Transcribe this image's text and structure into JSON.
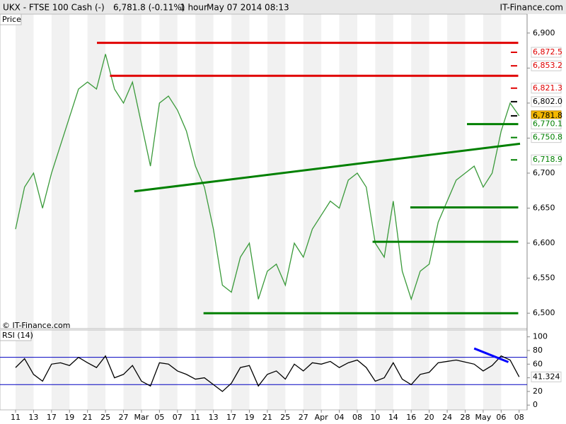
{
  "header": {
    "symbol": "UKX - FTSE 100 Cash (-)",
    "quote": "6,781.8 (-0.11%)",
    "period": "1 hour",
    "timestamp": "May 07 2014 08:13",
    "source": "IT-Finance.com"
  },
  "chart_data": [
    {
      "type": "line",
      "title": "Price",
      "watermark": "© IT-Finance.com",
      "color": "#3a9a3a",
      "categories": [
        "11",
        null,
        "13",
        null,
        "17",
        null,
        "19",
        null,
        "21",
        null,
        "25",
        null,
        "27",
        null,
        "Mar",
        null,
        "05",
        null,
        "07",
        null,
        "11",
        null,
        "13",
        null,
        "17",
        null,
        "19",
        null,
        "21",
        null,
        "25",
        null,
        "27",
        null,
        "Apr",
        null,
        "04",
        null,
        "08",
        null,
        "10",
        null,
        "14",
        null,
        "16",
        null,
        "20",
        null,
        "24",
        null,
        "28",
        null,
        "May",
        null,
        "06",
        null,
        "08"
      ],
      "values": [
        6620,
        6680,
        6700,
        6650,
        6700,
        6740,
        6780,
        6820,
        6830,
        6820,
        6870,
        6820,
        6800,
        6830,
        6770,
        6710,
        6800,
        6810,
        6790,
        6760,
        6710,
        6680,
        6620,
        6540,
        6530,
        6580,
        6600,
        6520,
        6560,
        6570,
        6540,
        6600,
        6580,
        6620,
        6640,
        6660,
        6650,
        6690,
        6700,
        6680,
        6600,
        6580,
        6660,
        6560,
        6520,
        6560,
        6570,
        6630,
        6660,
        6690,
        6700,
        6710,
        6680,
        6700,
        6760,
        6800,
        6781.8
      ],
      "ylim": [
        6478,
        6927
      ],
      "yticks": [
        {
          "value": 6500,
          "label": "6,500"
        },
        {
          "value": 6550,
          "label": "6,550"
        },
        {
          "value": 6600,
          "label": "6,600"
        },
        {
          "value": 6650,
          "label": "6,650"
        },
        {
          "value": 6700,
          "label": "6,700"
        },
        {
          "value": 6750,
          "label": "6,750"
        },
        {
          "value": 6800,
          "label": "6,800"
        },
        {
          "value": 6850,
          "label": "6,850"
        },
        {
          "value": 6900,
          "label": "6,900"
        }
      ],
      "levels": [
        {
          "value": 6872.5,
          "label": "6,872.5",
          "color": "#e00000"
        },
        {
          "value": 6853.2,
          "label": "6,853.2",
          "color": "#e00000"
        },
        {
          "value": 6821.3,
          "label": "6,821.3",
          "color": "#e00000"
        },
        {
          "value": 6802.0,
          "label": "6,802.0",
          "color": "#000000"
        },
        {
          "value": 6781.8,
          "label": "6,781.8",
          "color": "#000000",
          "highlight": "#f5b800"
        },
        {
          "value": 6770.1,
          "label": "6,770.1",
          "color": "#008000"
        },
        {
          "value": 6750.8,
          "label": "6,750.8",
          "color": "#008000"
        },
        {
          "value": 6718.9,
          "label": "6,718.9",
          "color": "#008000"
        }
      ],
      "trendlines": [
        {
          "color": "#e00000",
          "x": [
            9.05,
            55.9
          ],
          "y": [
            6886,
            6886
          ]
        },
        {
          "color": "#e00000",
          "x": [
            10.5,
            55.9
          ],
          "y": [
            6839,
            6839
          ]
        },
        {
          "color": "#008000",
          "x": [
            13.2,
            56.1
          ],
          "y": [
            6674,
            6742
          ]
        },
        {
          "color": "#008000",
          "x": [
            50.2,
            55.9
          ],
          "y": [
            6770,
            6770
          ]
        },
        {
          "color": "#008000",
          "x": [
            43.9,
            55.9
          ],
          "y": [
            6651,
            6651
          ]
        },
        {
          "color": "#008000",
          "x": [
            39.7,
            55.9
          ],
          "y": [
            6602,
            6602
          ]
        },
        {
          "color": "#008000",
          "x": [
            20.9,
            55.9
          ],
          "y": [
            6500,
            6500
          ]
        }
      ]
    },
    {
      "type": "line",
      "title": "RSI (14)",
      "color": "#000000",
      "values": [
        55,
        68,
        45,
        35,
        60,
        62,
        58,
        70,
        62,
        55,
        72,
        40,
        45,
        58,
        35,
        28,
        62,
        60,
        50,
        45,
        38,
        40,
        30,
        20,
        32,
        55,
        58,
        28,
        45,
        50,
        38,
        60,
        50,
        62,
        60,
        64,
        55,
        62,
        66,
        55,
        35,
        40,
        62,
        38,
        30,
        45,
        48,
        62,
        64,
        66,
        63,
        60,
        50,
        58,
        72,
        66,
        41.324
      ],
      "value_labels": [
        null,
        null,
        null,
        null,
        null,
        null,
        null,
        null,
        null,
        null,
        null,
        null,
        null,
        null,
        null,
        null,
        null,
        null,
        null,
        null,
        null,
        null,
        null,
        null,
        null,
        null,
        null,
        null,
        null,
        null,
        null,
        null,
        null,
        null,
        null,
        null,
        null,
        null,
        null,
        null,
        null,
        null,
        null,
        null,
        null,
        null,
        null,
        null,
        null,
        null,
        null,
        null,
        null,
        null,
        null,
        null,
        "41.324"
      ],
      "ylim": [
        -7,
        110
      ],
      "yticks": [
        0,
        20,
        40,
        60,
        80,
        100
      ],
      "hlines": [
        70,
        30
      ],
      "hline_color": "#0000c0",
      "trendlines": [
        {
          "color": "#0000ff",
          "x": [
            51,
            54.8
          ],
          "y": [
            83,
            63
          ]
        }
      ]
    }
  ]
}
